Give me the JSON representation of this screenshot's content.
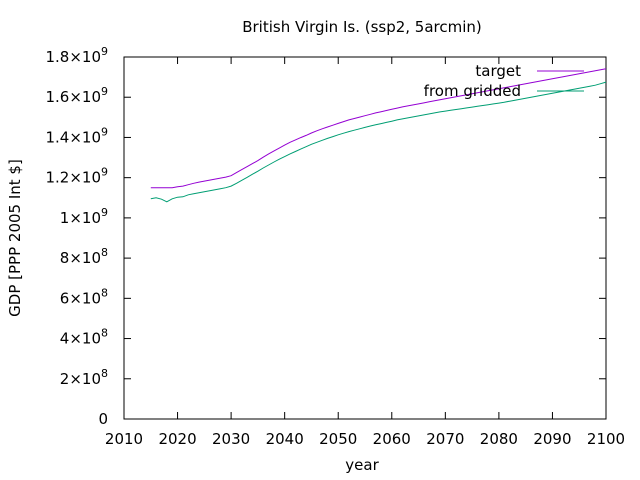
{
  "chart_data": {
    "type": "line",
    "title": "British Virgin Is. (ssp2, 5arcmin)",
    "xlabel": "year",
    "ylabel": "GDP [PPP 2005 Int $]",
    "xlim": [
      2010,
      2100
    ],
    "ylim": [
      0,
      1800000000
    ],
    "xticks": [
      2010,
      2020,
      2030,
      2040,
      2050,
      2060,
      2070,
      2080,
      2090,
      2100
    ],
    "yticks": [
      {
        "value": 0,
        "mantissa": "0",
        "exp": ""
      },
      {
        "value": 200000000,
        "mantissa": "2×10",
        "exp": "8"
      },
      {
        "value": 400000000,
        "mantissa": "4×10",
        "exp": "8"
      },
      {
        "value": 600000000,
        "mantissa": "6×10",
        "exp": "8"
      },
      {
        "value": 800000000,
        "mantissa": "8×10",
        "exp": "8"
      },
      {
        "value": 1000000000,
        "mantissa": "1×10",
        "exp": "9"
      },
      {
        "value": 1200000000,
        "mantissa": "1.2×10",
        "exp": "9"
      },
      {
        "value": 1400000000,
        "mantissa": "1.4×10",
        "exp": "9"
      },
      {
        "value": 1600000000,
        "mantissa": "1.6×10",
        "exp": "9"
      },
      {
        "value": 1800000000,
        "mantissa": "1.8×10",
        "exp": "9"
      }
    ],
    "grid": false,
    "legend_position": "top-right",
    "series": [
      {
        "name": "target",
        "color": "#9400d3",
        "x": [
          2015,
          2016,
          2017,
          2018,
          2019,
          2020,
          2021,
          2022,
          2023,
          2024,
          2025,
          2026,
          2027,
          2028,
          2029,
          2030,
          2031,
          2032,
          2033,
          2034,
          2035,
          2036,
          2037,
          2038,
          2039,
          2040,
          2041,
          2042,
          2043,
          2044,
          2045,
          2046,
          2047,
          2048,
          2049,
          2050,
          2051,
          2052,
          2053,
          2054,
          2055,
          2056,
          2057,
          2058,
          2059,
          2060,
          2061,
          2062,
          2063,
          2064,
          2065,
          2066,
          2067,
          2068,
          2069,
          2070,
          2071,
          2072,
          2073,
          2074,
          2075,
          2076,
          2077,
          2078,
          2079,
          2080,
          2081,
          2082,
          2083,
          2084,
          2085,
          2086,
          2087,
          2088,
          2089,
          2090,
          2091,
          2092,
          2093,
          2094,
          2095,
          2096,
          2097,
          2098,
          2099,
          2100
        ],
        "values": [
          1150000000,
          1150000000,
          1150000000,
          1150000000,
          1150000000,
          1155000000,
          1158000000,
          1165000000,
          1172000000,
          1178000000,
          1183000000,
          1188000000,
          1193000000,
          1198000000,
          1203000000,
          1210000000,
          1225000000,
          1240000000,
          1255000000,
          1270000000,
          1285000000,
          1302000000,
          1318000000,
          1333000000,
          1347000000,
          1362000000,
          1376000000,
          1388000000,
          1399000000,
          1410000000,
          1422000000,
          1433000000,
          1443000000,
          1452000000,
          1461000000,
          1470000000,
          1479000000,
          1487000000,
          1494000000,
          1501000000,
          1508000000,
          1515000000,
          1522000000,
          1528000000,
          1534000000,
          1540000000,
          1546000000,
          1552000000,
          1557000000,
          1562000000,
          1567000000,
          1572000000,
          1577000000,
          1582000000,
          1587000000,
          1592000000,
          1597000000,
          1602000000,
          1607000000,
          1612000000,
          1617000000,
          1622000000,
          1627000000,
          1632000000,
          1637000000,
          1642000000,
          1647000000,
          1652000000,
          1657000000,
          1662000000,
          1667000000,
          1672000000,
          1677000000,
          1682000000,
          1687000000,
          1692000000,
          1697000000,
          1702000000,
          1707000000,
          1712000000,
          1717000000,
          1722000000,
          1727000000,
          1732000000,
          1737000000,
          1742000000
        ]
      },
      {
        "name": "from gridded",
        "color": "#009e73",
        "x": [
          2015,
          2016,
          2017,
          2018,
          2019,
          2020,
          2021,
          2022,
          2023,
          2024,
          2025,
          2026,
          2027,
          2028,
          2029,
          2030,
          2031,
          2032,
          2033,
          2034,
          2035,
          2036,
          2037,
          2038,
          2039,
          2040,
          2041,
          2042,
          2043,
          2044,
          2045,
          2046,
          2047,
          2048,
          2049,
          2050,
          2051,
          2052,
          2053,
          2054,
          2055,
          2056,
          2057,
          2058,
          2059,
          2060,
          2061,
          2062,
          2063,
          2064,
          2065,
          2066,
          2067,
          2068,
          2069,
          2070,
          2071,
          2072,
          2073,
          2074,
          2075,
          2076,
          2077,
          2078,
          2079,
          2080,
          2081,
          2082,
          2083,
          2084,
          2085,
          2086,
          2087,
          2088,
          2089,
          2090,
          2091,
          2092,
          2093,
          2094,
          2095,
          2096,
          2097,
          2098,
          2099,
          2100
        ],
        "values": [
          1095000000,
          1100000000,
          1093000000,
          1080000000,
          1095000000,
          1103000000,
          1105000000,
          1115000000,
          1120000000,
          1125000000,
          1130000000,
          1135000000,
          1140000000,
          1145000000,
          1150000000,
          1158000000,
          1172000000,
          1187000000,
          1202000000,
          1217000000,
          1232000000,
          1248000000,
          1263000000,
          1278000000,
          1292000000,
          1305000000,
          1318000000,
          1330000000,
          1342000000,
          1354000000,
          1366000000,
          1376000000,
          1386000000,
          1395000000,
          1404000000,
          1413000000,
          1421000000,
          1429000000,
          1436000000,
          1443000000,
          1450000000,
          1457000000,
          1463000000,
          1469000000,
          1475000000,
          1481000000,
          1487000000,
          1492000000,
          1497000000,
          1502000000,
          1507000000,
          1512000000,
          1517000000,
          1522000000,
          1527000000,
          1531000000,
          1535000000,
          1539000000,
          1543000000,
          1547000000,
          1551000000,
          1555000000,
          1559000000,
          1563000000,
          1567000000,
          1571000000,
          1575000000,
          1580000000,
          1585000000,
          1590000000,
          1595000000,
          1600000000,
          1605000000,
          1610000000,
          1615000000,
          1620000000,
          1625000000,
          1630000000,
          1635000000,
          1640000000,
          1645000000,
          1650000000,
          1655000000,
          1660000000,
          1667000000,
          1675000000
        ]
      }
    ]
  }
}
